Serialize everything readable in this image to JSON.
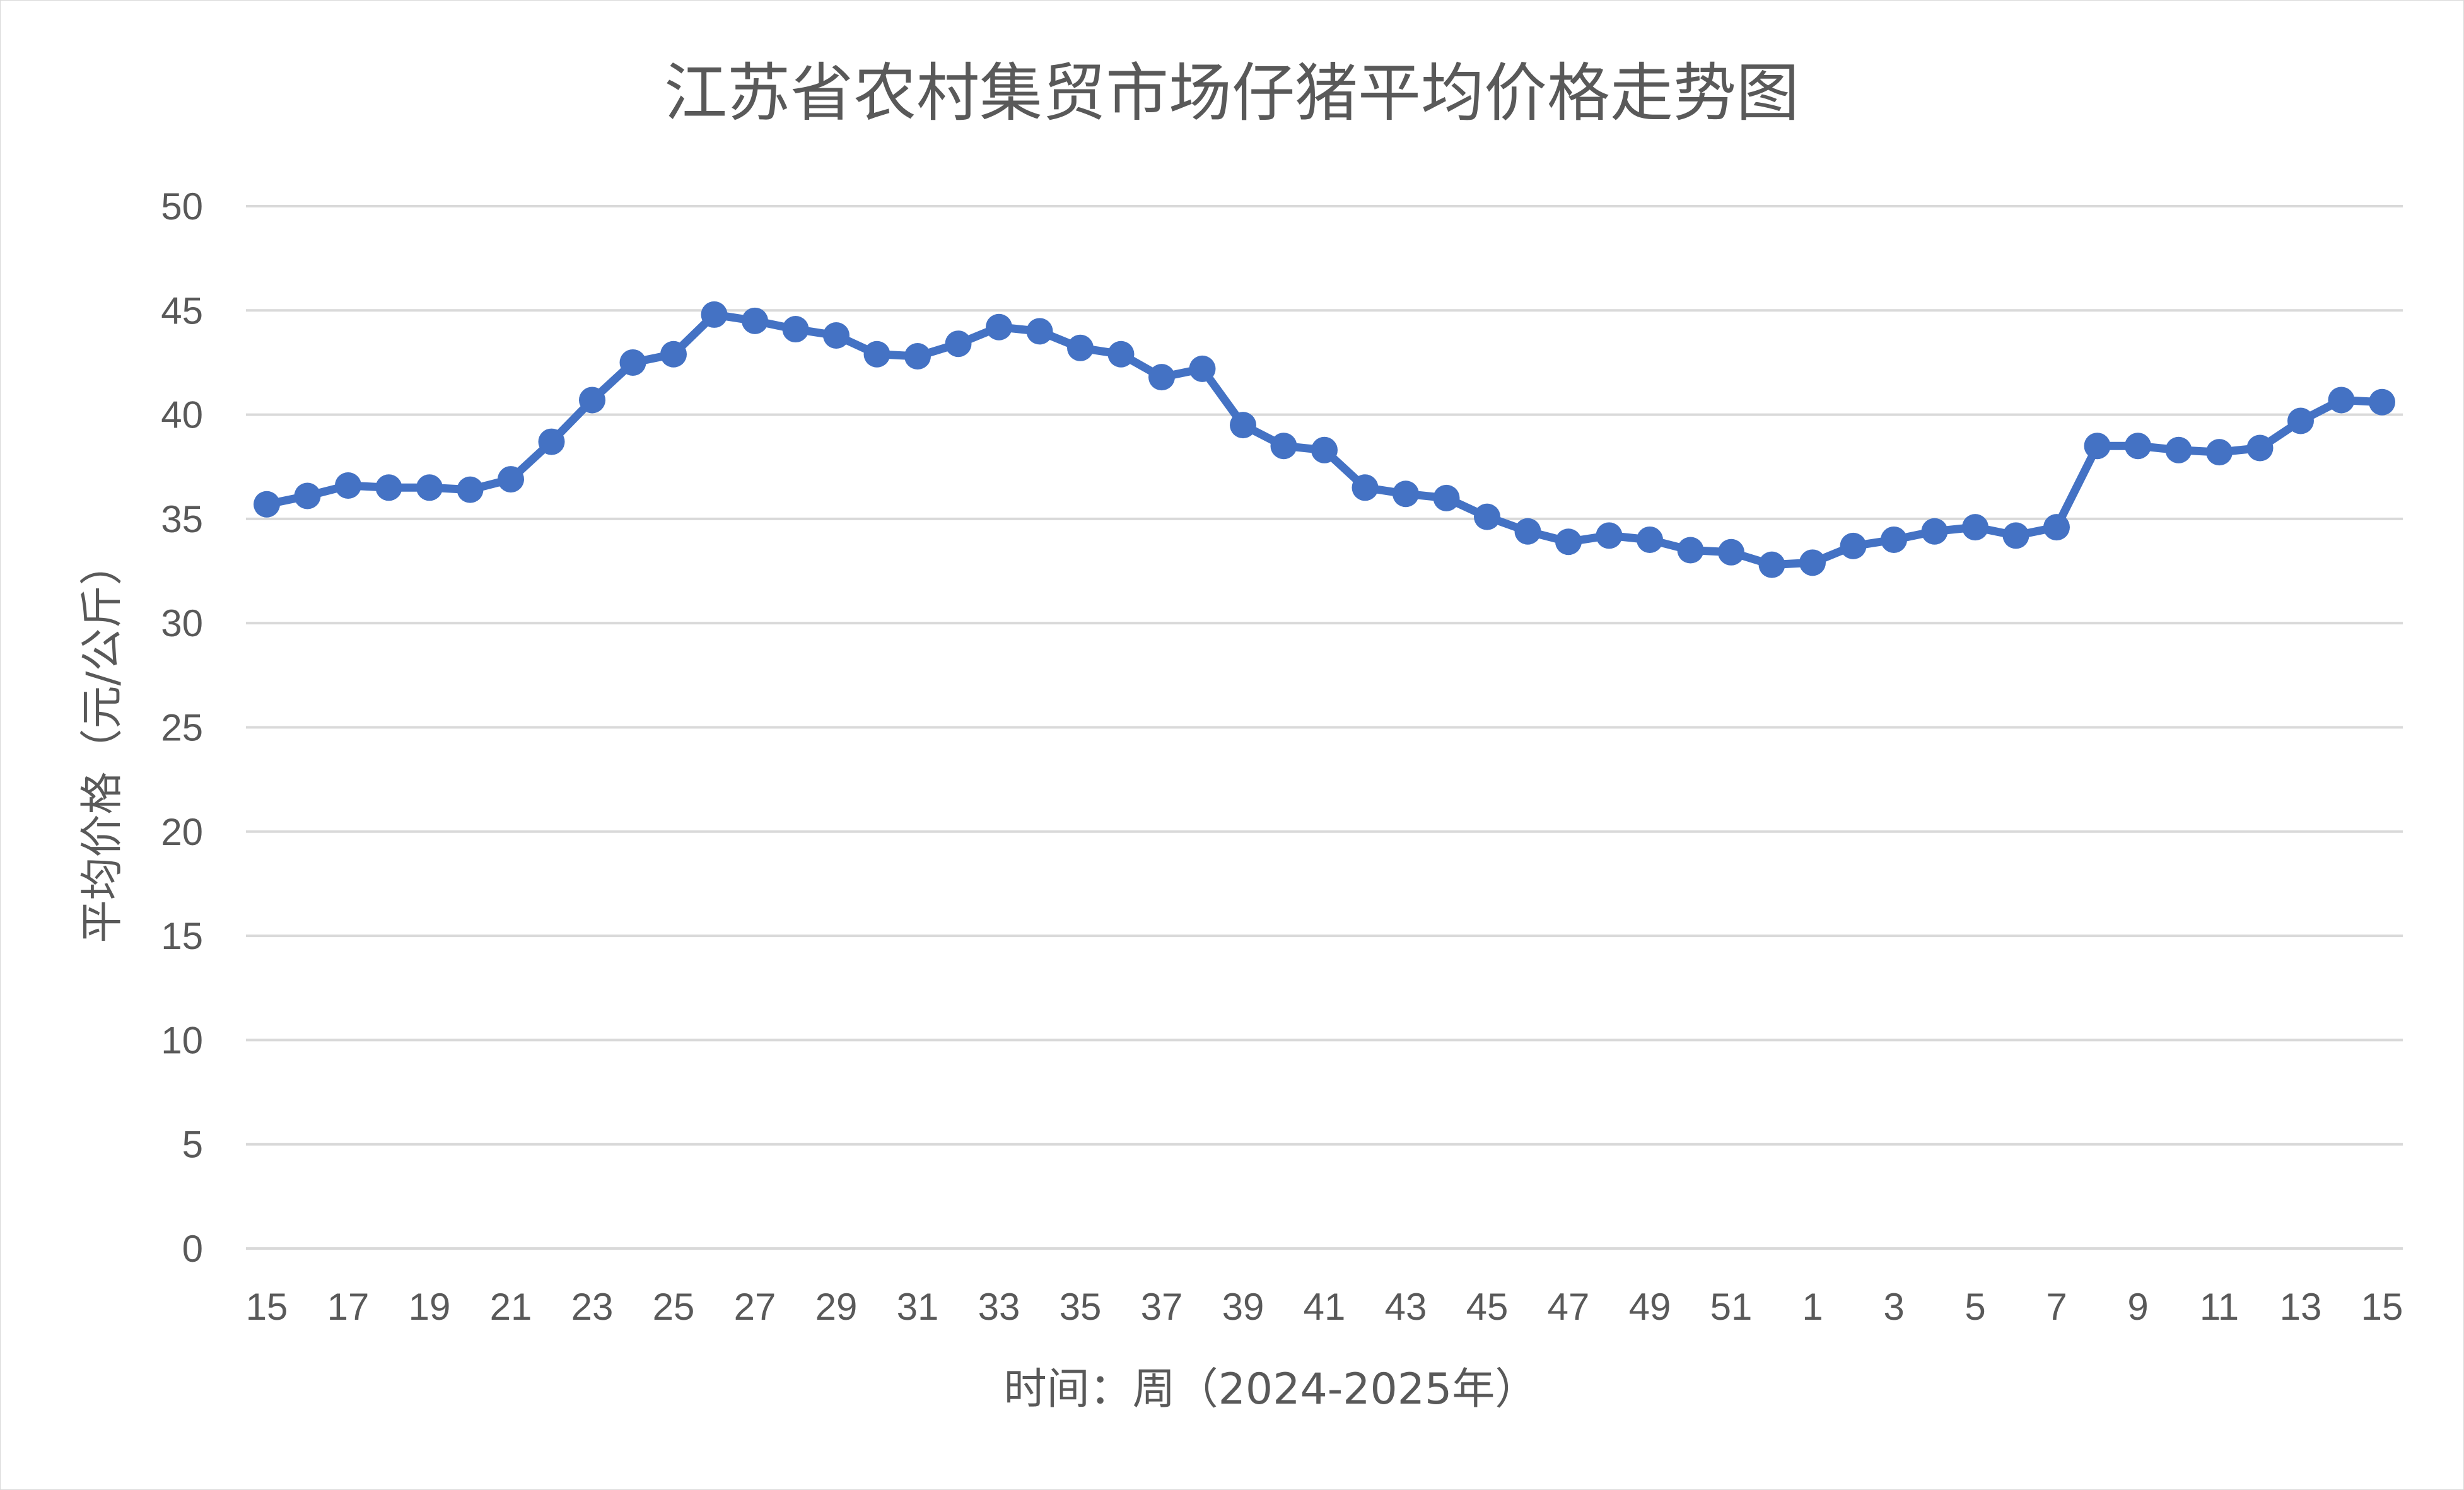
{
  "chart_data": {
    "type": "line",
    "title": "江苏省农村集贸市场仔猪平均价格走势图",
    "xlabel": "时间：周（2024-2025年）",
    "ylabel": "平均价格（元/公斤）",
    "ylim": [
      0,
      50
    ],
    "yticks": [
      0,
      5,
      10,
      15,
      20,
      25,
      30,
      35,
      40,
      45,
      50
    ],
    "grid": true,
    "legend": "none",
    "categories": [
      "15",
      "16",
      "17",
      "18",
      "19",
      "20",
      "21",
      "22",
      "23",
      "24",
      "25",
      "26",
      "27",
      "28",
      "29",
      "30",
      "31",
      "32",
      "33",
      "34",
      "35",
      "36",
      "37",
      "38",
      "39",
      "40",
      "41",
      "42",
      "43",
      "44",
      "45",
      "46",
      "47",
      "48",
      "49",
      "50",
      "51",
      "52",
      "1",
      "2",
      "3",
      "4",
      "5",
      "6",
      "7",
      "8",
      "9",
      "10",
      "11",
      "12",
      "13",
      "14",
      "15"
    ],
    "xtick_labels": [
      "15",
      "17",
      "19",
      "21",
      "23",
      "25",
      "27",
      "29",
      "31",
      "33",
      "35",
      "37",
      "39",
      "41",
      "43",
      "45",
      "47",
      "49",
      "51",
      "1",
      "3",
      "5",
      "7",
      "9",
      "11",
      "13",
      "15"
    ],
    "series": [
      {
        "color": "#4472c4",
        "values": [
          35.7,
          36.1,
          36.6,
          36.5,
          36.5,
          36.4,
          36.9,
          38.7,
          40.7,
          42.5,
          42.9,
          44.8,
          44.5,
          44.1,
          43.8,
          42.9,
          42.8,
          43.4,
          44.2,
          44.0,
          43.2,
          42.9,
          41.8,
          42.2,
          39.5,
          38.5,
          38.3,
          36.5,
          36.2,
          36.0,
          35.1,
          34.4,
          33.9,
          34.2,
          34.0,
          33.5,
          33.4,
          32.8,
          32.9,
          33.7,
          34.0,
          34.4,
          34.6,
          34.2,
          34.6,
          38.5,
          38.5,
          38.3,
          38.2,
          38.4,
          39.7,
          40.7,
          40.6
        ]
      }
    ]
  }
}
